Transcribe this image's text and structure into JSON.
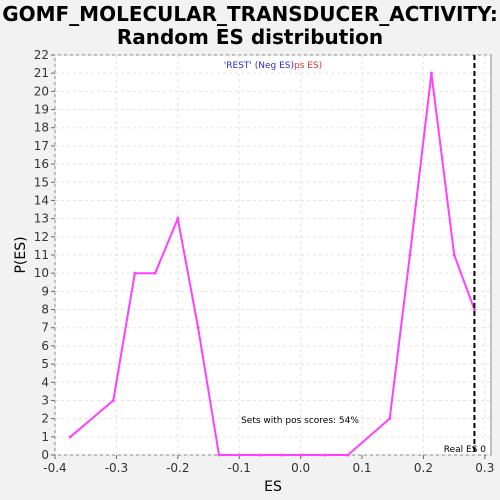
{
  "chart_data": {
    "type": "line",
    "title_line1": "GOMF_MOLECULAR_TRANSDUCER_ACTIVITY:",
    "title_line2": "Random ES distribution",
    "xlabel": "ES",
    "ylabel": "P(ES)",
    "xlim": [
      -0.4,
      0.31
    ],
    "ylim": [
      0,
      22
    ],
    "x_ticks": [
      -0.4,
      -0.3,
      -0.2,
      -0.1,
      0.0,
      0.1,
      0.2,
      0.3
    ],
    "x_tick_labels": [
      "-0.4",
      "-0.3",
      "-0.2",
      "-0.1",
      "0.0",
      "0.1",
      "0.2",
      "0.3"
    ],
    "y_ticks": [
      0,
      1,
      2,
      3,
      4,
      5,
      6,
      7,
      8,
      9,
      10,
      11,
      12,
      13,
      14,
      15,
      16,
      17,
      18,
      19,
      20,
      21,
      22
    ],
    "grid": true,
    "series": [
      {
        "color": "#ff40ff",
        "x": [
          -0.375,
          -0.305,
          -0.27,
          -0.237,
          -0.2,
          -0.167,
          -0.133,
          -0.1,
          -0.065,
          -0.03,
          0.003,
          0.04,
          0.077,
          0.145,
          0.178,
          0.213,
          0.25,
          0.283
        ],
        "values": [
          1,
          3,
          10,
          10,
          13,
          7,
          0,
          0,
          0,
          0,
          0,
          0,
          0,
          2,
          11,
          21,
          11,
          8
        ]
      }
    ],
    "real_es": 0.283,
    "real_es_label": "Real ES 0",
    "legend": {
      "placement": "top-center",
      "neg_text": "'REST' (Neg ES)",
      "neg_color": "#2b2bd6",
      "pos_text": "ps ES)",
      "pos_color": "#e03030"
    },
    "annotation": "Sets with pos scores: 54%"
  }
}
